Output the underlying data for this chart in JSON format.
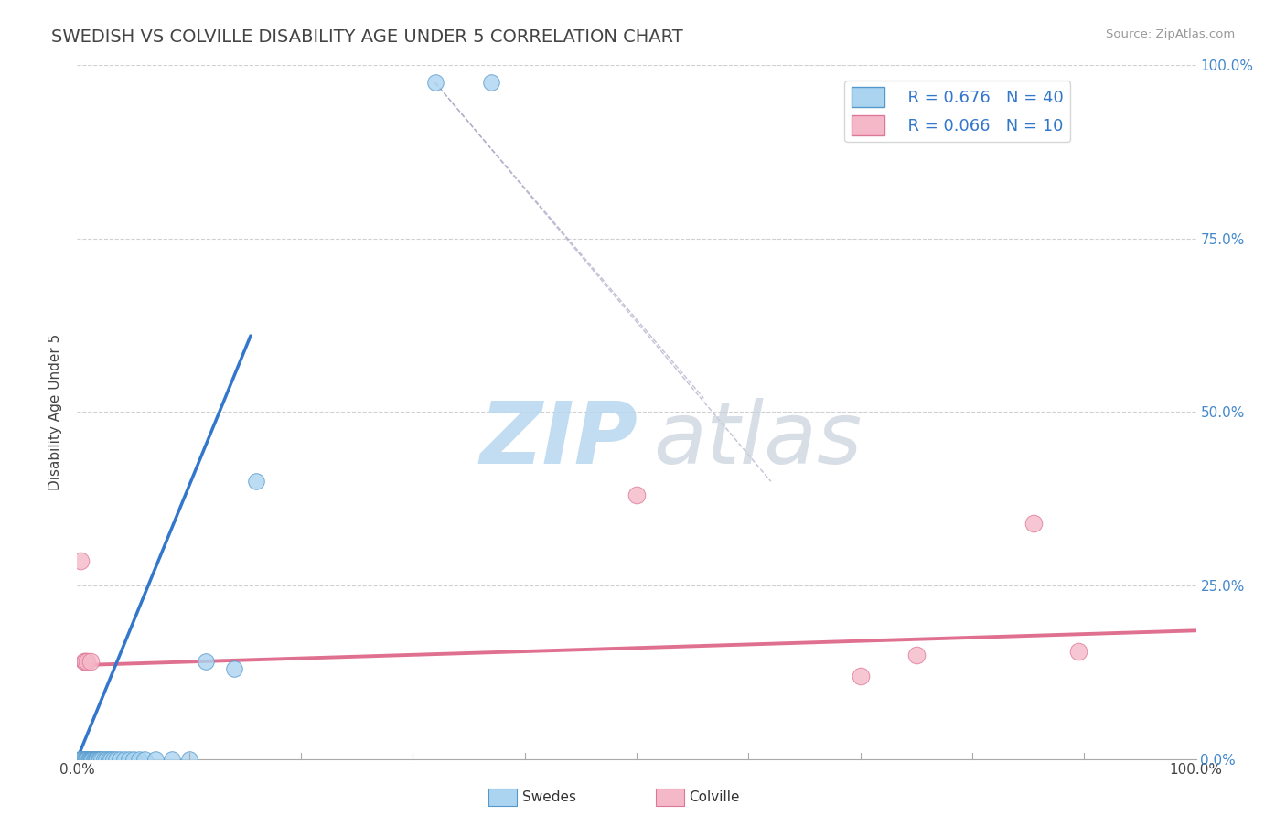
{
  "title": "SWEDISH VS COLVILLE DISABILITY AGE UNDER 5 CORRELATION CHART",
  "source_text": "Source: ZipAtlas.com",
  "ylabel": "Disability Age Under 5",
  "xlim": [
    0,
    1.0
  ],
  "ylim": [
    0,
    1.0
  ],
  "ytick_vals": [
    0.0,
    0.25,
    0.5,
    0.75,
    1.0
  ],
  "ytick_labels": [
    "0.0%",
    "25.0%",
    "50.0%",
    "75.0%",
    "100.0%"
  ],
  "grid_color": "#d0d0d0",
  "background_color": "#ffffff",
  "title_color": "#444444",
  "title_fontsize": 14,
  "swedes_x": [
    0.002,
    0.003,
    0.004,
    0.005,
    0.006,
    0.007,
    0.008,
    0.009,
    0.01,
    0.011,
    0.012,
    0.013,
    0.014,
    0.015,
    0.016,
    0.017,
    0.018,
    0.019,
    0.02,
    0.022,
    0.024,
    0.026,
    0.028,
    0.03,
    0.032,
    0.035,
    0.038,
    0.042,
    0.046,
    0.05,
    0.055,
    0.06,
    0.07,
    0.085,
    0.1,
    0.115,
    0.14,
    0.16,
    0.32,
    0.37
  ],
  "swedes_y": [
    0.0,
    0.0,
    0.0,
    0.0,
    0.0,
    0.0,
    0.0,
    0.0,
    0.0,
    0.0,
    0.0,
    0.0,
    0.0,
    0.0,
    0.0,
    0.0,
    0.0,
    0.0,
    0.0,
    0.0,
    0.0,
    0.0,
    0.0,
    0.0,
    0.0,
    0.0,
    0.0,
    0.0,
    0.0,
    0.0,
    0.0,
    0.0,
    0.0,
    0.0,
    0.0,
    0.14,
    0.13,
    0.4,
    0.975,
    0.975
  ],
  "colville_x": [
    0.003,
    0.006,
    0.007,
    0.009,
    0.012,
    0.5,
    0.7,
    0.75,
    0.855,
    0.895
  ],
  "colville_y": [
    0.285,
    0.14,
    0.14,
    0.14,
    0.14,
    0.38,
    0.12,
    0.15,
    0.34,
    0.155
  ],
  "swedes_color": "#aad4f0",
  "swedes_edge_color": "#5599cc",
  "colville_color": "#f5b8c8",
  "colville_edge_color": "#dd7799",
  "blue_line_x": [
    0.0,
    0.155
  ],
  "blue_line_y": [
    0.0,
    0.61
  ],
  "pink_line_x": [
    0.0,
    1.0
  ],
  "pink_line_y": [
    0.135,
    0.185
  ],
  "diag_line_x": [
    0.32,
    0.56
  ],
  "diag_line_y": [
    0.975,
    0.52
  ],
  "legend_R_swedish": "0.676",
  "legend_N_swedish": "40",
  "legend_R_colville": "0.066",
  "legend_N_colville": "10",
  "legend_label_swedes": "Swedes",
  "legend_label_colville": "Colville"
}
